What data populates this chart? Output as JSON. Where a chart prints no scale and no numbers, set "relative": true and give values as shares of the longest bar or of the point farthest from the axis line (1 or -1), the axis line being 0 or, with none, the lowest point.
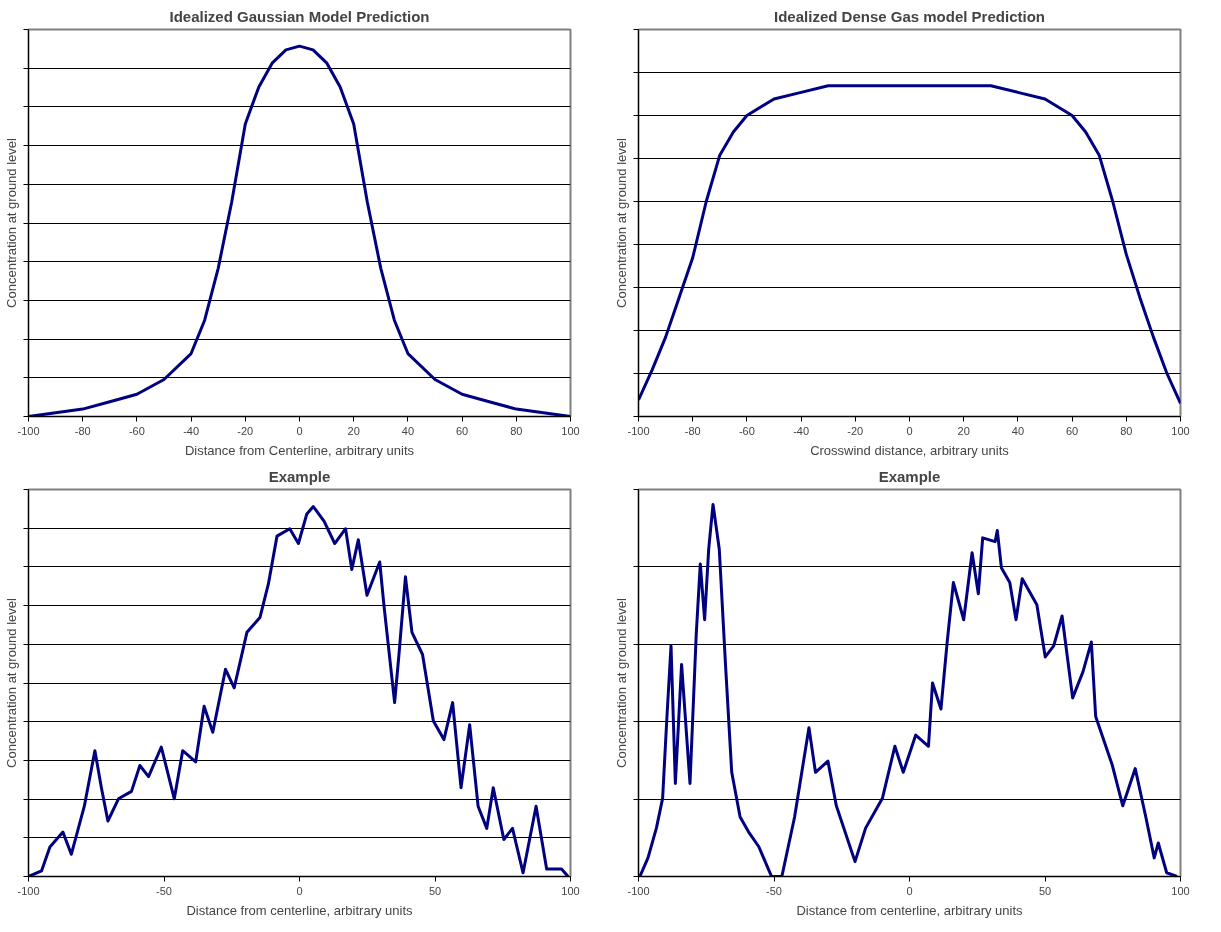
{
  "chart_data": [
    {
      "type": "line",
      "title": "Idealized Gaussian Model Prediction",
      "xlabel": "Distance from Centerline, arbitrary units",
      "ylabel": "Concentration at ground level",
      "relative": true,
      "xlim": [
        -100,
        100
      ],
      "xticks": [
        -100,
        -80,
        -60,
        -40,
        -20,
        0,
        20,
        40,
        60,
        80,
        100
      ],
      "grid": "y",
      "line_style": "solid",
      "x": [
        -100,
        -90,
        -80,
        -70,
        -60,
        -50,
        -40,
        -35,
        -30,
        -25,
        -20,
        -15,
        -10,
        -5,
        0,
        5,
        10,
        15,
        20,
        25,
        30,
        35,
        40,
        50,
        60,
        70,
        80,
        90,
        100
      ],
      "series": [
        {
          "color": "#000080",
          "values": [
            0.0,
            0.01,
            0.02,
            0.04,
            0.06,
            0.1,
            0.17,
            0.26,
            0.4,
            0.58,
            0.79,
            0.89,
            0.955,
            0.99,
            1.0,
            0.99,
            0.955,
            0.89,
            0.79,
            0.58,
            0.4,
            0.26,
            0.17,
            0.1,
            0.06,
            0.04,
            0.02,
            0.01,
            0.0
          ]
        }
      ]
    },
    {
      "type": "line",
      "title": "Idealized Dense Gas model Prediction",
      "xlabel": "Crosswind distance, arbitrary units",
      "ylabel": "Concentration at ground level",
      "relative": true,
      "xlim": [
        -100,
        100
      ],
      "xticks": [
        -100,
        -80,
        -60,
        -40,
        -20,
        0,
        20,
        40,
        60,
        80,
        100
      ],
      "grid": "y",
      "line_style": "solid",
      "x": [
        -100,
        -95,
        -90,
        -85,
        -80,
        -75,
        -70,
        -65,
        -60,
        -50,
        -40,
        -30,
        -20,
        0,
        20,
        30,
        40,
        50,
        60,
        65,
        70,
        75,
        80,
        85,
        90,
        95,
        100
      ],
      "series": [
        {
          "color": "#000080",
          "values": [
            0.05,
            0.14,
            0.24,
            0.36,
            0.48,
            0.65,
            0.79,
            0.86,
            0.91,
            0.96,
            0.98,
            1.0,
            1.0,
            1.0,
            1.0,
            1.0,
            0.98,
            0.96,
            0.91,
            0.86,
            0.79,
            0.65,
            0.49,
            0.36,
            0.24,
            0.13,
            0.04
          ]
        }
      ]
    },
    {
      "type": "line",
      "title": "Example",
      "xlabel": "Distance from centerline, arbitrary units",
      "ylabel": "Concentration at ground level",
      "relative": true,
      "xlim": [
        -100,
        100
      ],
      "xticks": [
        -100,
        -50,
        0,
        50,
        100
      ],
      "grid": "y",
      "line_style": "solid",
      "x": [
        -100.0,
        -95.2,
        -92.1,
        -87.3,
        -84.2,
        -79.4,
        -75.5,
        -73.1,
        -70.7,
        -66.8,
        -62.0,
        -58.9,
        -55.7,
        -51.0,
        -46.2,
        -43.1,
        -38.3,
        -35.2,
        -32.0,
        -27.3,
        -24.1,
        -19.4,
        -14.6,
        -11.5,
        -8.3,
        -3.6,
        -0.4,
        2.7,
        5.1,
        9.1,
        13.0,
        17.0,
        19.3,
        21.7,
        24.9,
        29.6,
        31.2,
        35.1,
        36.7,
        39.1,
        41.5,
        45.4,
        49.4,
        53.3,
        56.5,
        59.6,
        62.8,
        65.9,
        69.1,
        71.5,
        75.4,
        78.6,
        82.5,
        87.3,
        91.2,
        96.7,
        99.1
      ],
      "series": [
        {
          "color": "#000080",
          "values": [
            0,
            0.015,
            0.08,
            0.12,
            0.06,
            0.19,
            0.34,
            0.24,
            0.15,
            0.21,
            0.23,
            0.3,
            0.27,
            0.35,
            0.21,
            0.34,
            0.31,
            0.46,
            0.39,
            0.56,
            0.51,
            0.66,
            0.7,
            0.79,
            0.92,
            0.94,
            0.9,
            0.98,
            1.0,
            0.96,
            0.9,
            0.94,
            0.83,
            0.91,
            0.76,
            0.85,
            0.73,
            0.47,
            0.6,
            0.81,
            0.66,
            0.6,
            0.42,
            0.37,
            0.47,
            0.24,
            0.41,
            0.19,
            0.13,
            0.24,
            0.1,
            0.13,
            0.01,
            0.19,
            0.02,
            0.02,
            0
          ]
        }
      ]
    },
    {
      "type": "line",
      "title": "Example",
      "xlabel": "Distance from centerline, arbitrary units",
      "ylabel": "Concentration at ground level",
      "relative": true,
      "xlim": [
        -100,
        100
      ],
      "xticks": [
        -100,
        -50,
        0,
        50,
        100
      ],
      "grid": "y",
      "line_style": "solid",
      "x": [
        -99.5,
        -96.5,
        -93.4,
        -91.1,
        -89.5,
        -88.0,
        -86.4,
        -84.1,
        -81.0,
        -78.7,
        -77.2,
        -75.6,
        -74.1,
        -72.5,
        -70.2,
        -67.9,
        -65.6,
        -62.5,
        -59.4,
        -55.6,
        -50.9,
        -47.1,
        -42.4,
        -37.1,
        -34.7,
        -30.1,
        -27.0,
        -20.1,
        -16.2,
        -10.0,
        -5.4,
        -2.3,
        2.3,
        7.0,
        8.5,
        11.6,
        13.9,
        16.2,
        20.0,
        23.1,
        25.4,
        27.0,
        31.6,
        32.4,
        33.9,
        37.0,
        39.3,
        41.6,
        47.0,
        50.1,
        53.2,
        56.3,
        60.2,
        64.0,
        67.1,
        68.7,
        74.8,
        78.7,
        83.3,
        87.2,
        90.3,
        91.8,
        94.9,
        98.7
      ],
      "series": [
        {
          "color": "#000080",
          "values": [
            0,
            0.05,
            0.13,
            0.21,
            0.43,
            0.62,
            0.25,
            0.57,
            0.25,
            0.65,
            0.84,
            0.69,
            0.88,
            1.0,
            0.88,
            0.57,
            0.28,
            0.16,
            0.12,
            0.08,
            0,
            0,
            0.16,
            0.4,
            0.28,
            0.31,
            0.19,
            0.04,
            0.13,
            0.21,
            0.35,
            0.28,
            0.38,
            0.35,
            0.52,
            0.45,
            0.63,
            0.79,
            0.69,
            0.87,
            0.76,
            0.91,
            0.9,
            0.93,
            0.83,
            0.79,
            0.69,
            0.8,
            0.73,
            0.59,
            0.62,
            0.7,
            0.48,
            0.55,
            0.63,
            0.43,
            0.3,
            0.19,
            0.29,
            0.16,
            0.05,
            0.09,
            0.01,
            0
          ]
        }
      ]
    }
  ]
}
